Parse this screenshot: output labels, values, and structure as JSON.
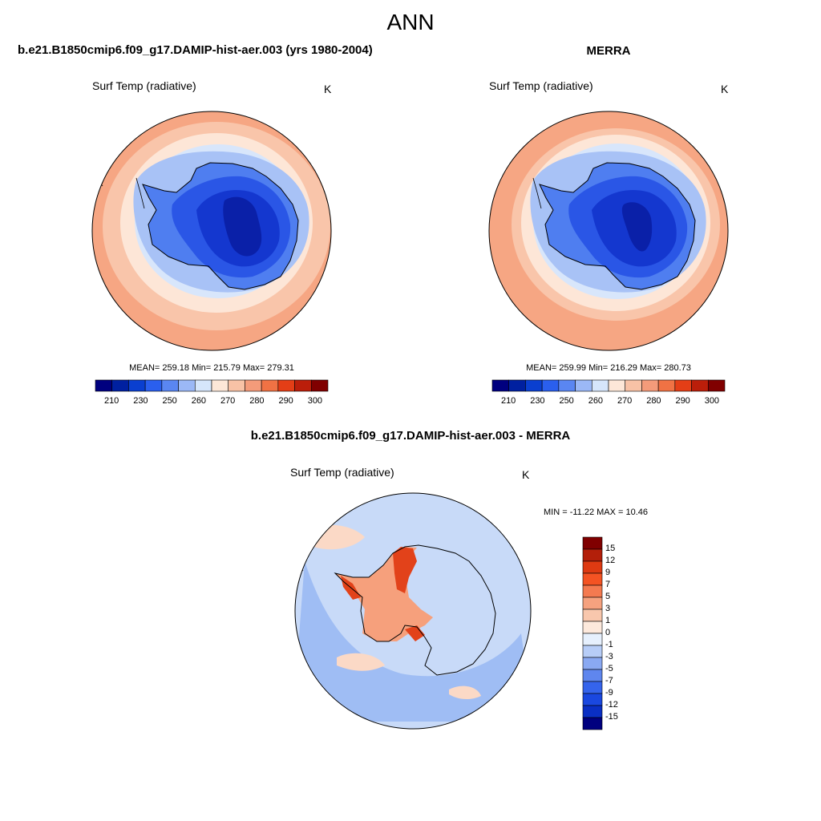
{
  "figure": {
    "title": "ANN",
    "panel_left_title": "b.e21.B1850cmip6.f09_g17.DAMIP-hist-aer.003 (yrs 1980-2004)",
    "panel_right_title": "MERRA",
    "panel_diff_title": "b.e21.B1850cmip6.f09_g17.DAMIP-hist-aer.003 - MERRA"
  },
  "variable": "Surf Temp (radiative)",
  "units": "K",
  "left_stats": "MEAN= 259.18  Min= 215.79  Max= 279.31",
  "right_stats": "MEAN= 259.99  Min= 216.29  Max= 280.73",
  "diff_stats": "MIN = -11.22 MAX =  10.46",
  "abs_colorbar": {
    "colors": [
      "#00007f",
      "#0020a0",
      "#0a3fd0",
      "#2a5fee",
      "#5a86f2",
      "#9bb8f6",
      "#d6e6fb",
      "#fde7d8",
      "#f8c2a6",
      "#f49b7a",
      "#f07244",
      "#e43e16",
      "#bb1e0a",
      "#800000"
    ],
    "tick_labels": [
      "210",
      "230",
      "250",
      "260",
      "270",
      "280",
      "290",
      "300"
    ]
  },
  "diff_colorbar": {
    "colors_top_to_bottom": [
      "#800000",
      "#b31f0a",
      "#de3a12",
      "#f45323",
      "#f47a50",
      "#f6a27f",
      "#f8c7ad",
      "#fde9dc",
      "#e6f0fd",
      "#b7cdf7",
      "#8aa9f2",
      "#5f86ee",
      "#3564ec",
      "#1a48e0",
      "#0a2fc4",
      "#00007f"
    ],
    "tick_labels": [
      "15",
      "12",
      "9",
      "7",
      "5",
      "3",
      "1",
      "0",
      "-1",
      "-3",
      "-5",
      "-7",
      "-9",
      "-12",
      "-15"
    ]
  },
  "map_colors": {
    "ocean_far": "#f6a683",
    "ocean_mid": "#f9c5aa",
    "ocean_near": "#fde6d7",
    "sea_ice": "#d8e6fb",
    "ice_edge": "#a8c2f6",
    "land_coast": "#4f7ef0",
    "land_mid": "#2a56e6",
    "land_high": "#1437cf",
    "plateau": "#0a20a8",
    "diff_base": "#c8daf8",
    "diff_ocean": "#9fbdf4",
    "diff_warm": "#f6a07c",
    "diff_hot": "#e2421a",
    "diff_pale": "#fbd9c6"
  }
}
